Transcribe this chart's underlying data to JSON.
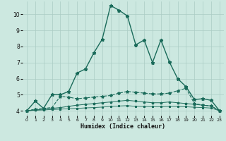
{
  "xlabel": "Humidex (Indice chaleur)",
  "bg_color": "#cce8e0",
  "grid_color": "#aaccc4",
  "line_color": "#1a6b5a",
  "xlim": [
    -0.5,
    23.5
  ],
  "ylim": [
    3.7,
    10.8
  ],
  "yticks": [
    4,
    5,
    6,
    7,
    8,
    9,
    10
  ],
  "xticks": [
    0,
    1,
    2,
    3,
    4,
    5,
    6,
    7,
    8,
    9,
    10,
    11,
    12,
    13,
    14,
    15,
    16,
    17,
    18,
    19,
    20,
    21,
    22,
    23
  ],
  "series": [
    {
      "x": [
        0,
        1,
        2,
        3,
        4,
        5,
        6,
        7,
        8,
        9,
        10,
        11,
        12,
        13,
        14,
        15,
        16,
        17,
        18,
        19,
        20,
        21,
        22,
        23
      ],
      "y": [
        4.0,
        4.6,
        4.15,
        5.0,
        5.0,
        5.2,
        6.35,
        6.6,
        7.6,
        8.45,
        10.55,
        10.25,
        9.9,
        8.1,
        8.4,
        7.0,
        8.4,
        7.05,
        6.0,
        5.5,
        4.7,
        4.75,
        4.65,
        4.0
      ],
      "style": "-",
      "marker": "*",
      "markersize": 3.5,
      "linewidth": 1.0
    },
    {
      "x": [
        0,
        1,
        2,
        3,
        4,
        5,
        6,
        7,
        8,
        9,
        10,
        11,
        12,
        13,
        14,
        15,
        16,
        17,
        18,
        19,
        20,
        21,
        22,
        23
      ],
      "y": [
        4.0,
        4.1,
        4.15,
        4.2,
        4.9,
        4.85,
        4.75,
        4.8,
        4.85,
        4.9,
        4.95,
        5.1,
        5.2,
        5.15,
        5.1,
        5.05,
        5.05,
        5.1,
        5.25,
        5.4,
        4.45,
        4.35,
        4.3,
        4.0
      ],
      "style": "--",
      "marker": "*",
      "markersize": 3.0,
      "linewidth": 0.8
    },
    {
      "x": [
        0,
        1,
        2,
        3,
        4,
        5,
        6,
        7,
        8,
        9,
        10,
        11,
        12,
        13,
        14,
        15,
        16,
        17,
        18,
        19,
        20,
        21,
        22,
        23
      ],
      "y": [
        4.0,
        4.05,
        4.1,
        4.15,
        4.2,
        4.28,
        4.35,
        4.4,
        4.45,
        4.5,
        4.55,
        4.6,
        4.65,
        4.6,
        4.55,
        4.5,
        4.5,
        4.55,
        4.5,
        4.45,
        4.4,
        4.35,
        4.3,
        4.0
      ],
      "style": "-",
      "marker": "*",
      "markersize": 2.5,
      "linewidth": 0.7
    },
    {
      "x": [
        0,
        1,
        2,
        3,
        4,
        5,
        6,
        7,
        8,
        9,
        10,
        11,
        12,
        13,
        14,
        15,
        16,
        17,
        18,
        19,
        20,
        21,
        22,
        23
      ],
      "y": [
        4.0,
        4.03,
        4.05,
        4.08,
        4.1,
        4.13,
        4.15,
        4.18,
        4.2,
        4.23,
        4.27,
        4.3,
        4.32,
        4.28,
        4.27,
        4.25,
        4.25,
        4.27,
        4.27,
        4.25,
        4.22,
        4.2,
        4.17,
        4.0
      ],
      "style": "-",
      "marker": "*",
      "markersize": 2.0,
      "linewidth": 0.6
    }
  ]
}
